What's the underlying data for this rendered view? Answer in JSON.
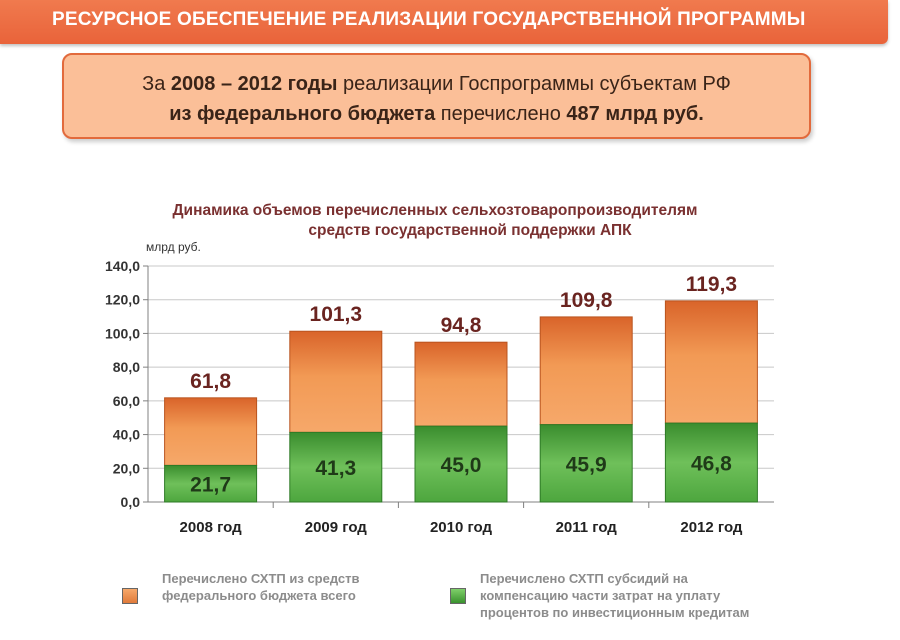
{
  "header": {
    "title": "РЕСУРСНОЕ ОБЕСПЕЧЕНИЕ РЕАЛИЗАЦИИ ГОСУДАРСТВЕННОЙ ПРОГРАММЫ"
  },
  "summary": {
    "line1_a": "За ",
    "line1_b": "2008 – 2012 годы",
    "line1_c": " реализации Госпрограммы субъектам РФ",
    "line2_a": "из федерального бюджета",
    "line2_b": " перечислено ",
    "line2_c": "487 млрд руб."
  },
  "chart_data": {
    "type": "bar",
    "stacked": true,
    "title_line1": "Динамика объемов перечисленных сельхозтоваропроизводителям",
    "title_line2": "средств государственной поддержки АПК",
    "unit": "млрд руб.",
    "categories": [
      "2008 год",
      "2009 год",
      "2010 год",
      "2011 год",
      "2012 год"
    ],
    "ylim": [
      0,
      140
    ],
    "yticks": [
      "0,0",
      "20,0",
      "40,0",
      "60,0",
      "80,0",
      "100,0",
      "120,0",
      "140,0"
    ],
    "grid": true,
    "legend_position": "bottom",
    "series": [
      {
        "name": "Перечислено СХТП из средств федерального бюджета всего",
        "totals": [
          61.8,
          101.3,
          94.8,
          109.8,
          119.3
        ],
        "labels": [
          "61,8",
          "101,3",
          "94,8",
          "109,8",
          "119,3"
        ],
        "color": "#e8853a"
      },
      {
        "name": "Перечислено СХТП субсидий на компенсацию части затрат на уплату процентов по инвестиционным кредитам",
        "values": [
          21.7,
          41.3,
          45.0,
          45.9,
          46.8
        ],
        "labels": [
          "21,7",
          "41,3",
          "45,0",
          "45,9",
          "46,8"
        ],
        "color": "#4aa23a"
      }
    ]
  },
  "legend": {
    "item1_line1": "Перечислено СХТП из средств",
    "item1_line2": "федерального бюджета всего",
    "item2_line1": "Перечислено СХТП субсидий на",
    "item2_line2": "компенсацию части затрат на уплату",
    "item2_line3": "процентов по инвестиционным кредитам"
  }
}
